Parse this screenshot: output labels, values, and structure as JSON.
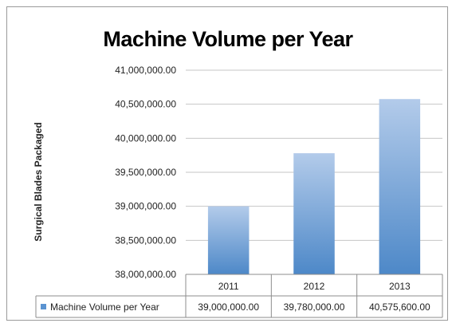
{
  "chart_data": {
    "type": "bar",
    "title": "Machine Volume per Year",
    "ylabel": "Surgical Blades Packaged",
    "xlabel": "",
    "categories": [
      "2011",
      "2012",
      "2013"
    ],
    "series": [
      {
        "name": "Machine Volume per Year",
        "values": [
          39000000,
          39780000,
          40575600
        ]
      }
    ],
    "ylim": [
      38000000,
      41000000
    ],
    "ytick_step": 500000,
    "yticks": [
      "38,000,000.00",
      "38,500,000.00",
      "39,000,000.00",
      "39,500,000.00",
      "40,000,000.00",
      "40,500,000.00",
      "41,000,000.00"
    ],
    "data_table": {
      "legend_label": "Machine Volume per Year",
      "values": [
        "39,000,000.00",
        "39,780,000.00",
        "40,575,600.00"
      ]
    },
    "grid": true,
    "legend": "data-table",
    "colors": {
      "bar_top": "#b3cbea",
      "bar_bottom": "#4d88c8",
      "legend_key": "#5b93d1",
      "grid": "#c6c6c6"
    }
  }
}
